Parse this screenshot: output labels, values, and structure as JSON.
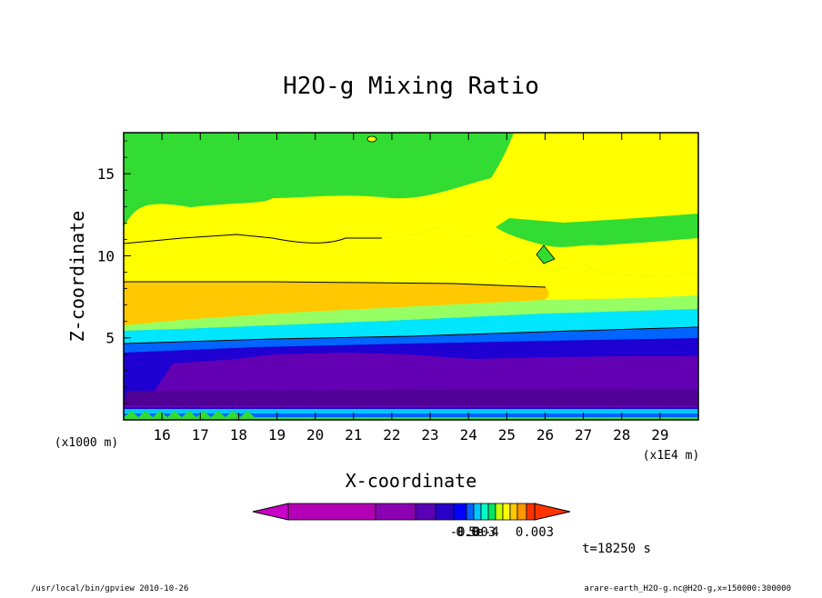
{
  "chart_data": {
    "type": "heatmap",
    "title": "H2O-g Mixing Ratio",
    "xlabel": "X-coordinate",
    "ylabel": "Z-coordinate",
    "x_units_left": "(x1000 m)",
    "x_units_right": "(x1E4 m)",
    "xlim": [
      15.0,
      30.0
    ],
    "ylim": [
      0,
      17.5
    ],
    "xticks": [
      "16",
      "17",
      "18",
      "19",
      "20",
      "21",
      "22",
      "23",
      "24",
      "25",
      "26",
      "27",
      "28",
      "29"
    ],
    "yticks": [
      "5",
      "10",
      "15"
    ],
    "time_label": "t=18250 s",
    "colorbar": {
      "labels": [
        "-0.003",
        "0.0",
        "5e-4",
        "0.003"
      ],
      "colors": [
        "#c800c8",
        "#b400b4",
        "#8c00b4",
        "#5a00b4",
        "#2800c8",
        "#0000ff",
        "#0064ff",
        "#00c8ff",
        "#00ffc8",
        "#00e664",
        "#c8ff00",
        "#ffff00",
        "#ffc800",
        "#ff9600",
        "#ff3200"
      ]
    },
    "levels": [
      {
        "name": "green",
        "color": "#32dc32"
      },
      {
        "name": "yellow",
        "color": "#ffff00"
      },
      {
        "name": "orange",
        "color": "#ffc800"
      },
      {
        "name": "lightgreen",
        "color": "#96ff64"
      },
      {
        "name": "cyan",
        "color": "#00e6ff"
      },
      {
        "name": "blue",
        "color": "#0064ff"
      },
      {
        "name": "darkblue",
        "color": "#1e00d2"
      },
      {
        "name": "purple",
        "color": "#6400b4"
      }
    ]
  },
  "footer": {
    "left": "/usr/local/bin/gpview  2010-10-26",
    "right": "arare-earth_H2O-g.nc@H2O-g,x=150000:300000"
  }
}
